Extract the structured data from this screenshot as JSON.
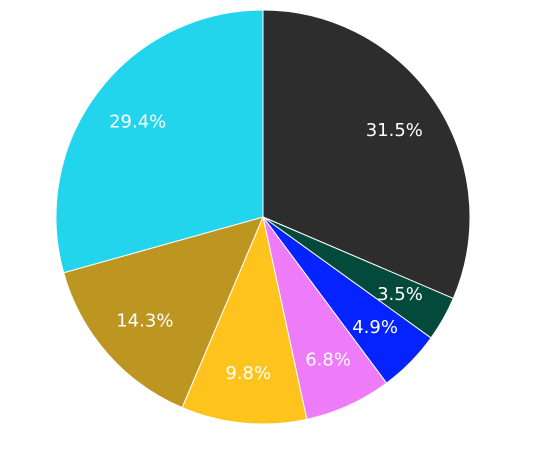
{
  "chart_data": {
    "type": "pie",
    "title": "",
    "start_angle_deg": 90,
    "direction": "clockwise",
    "legend": "none",
    "slices": [
      {
        "value": 31.5,
        "label": "31.5%",
        "color": "#2d2d2d"
      },
      {
        "value": 3.5,
        "label": "3.5%",
        "color": "#034a3c"
      },
      {
        "value": 4.9,
        "label": "4.9%",
        "color": "#0423ff"
      },
      {
        "value": 6.8,
        "label": "6.8%",
        "color": "#ee7bf7"
      },
      {
        "value": 9.8,
        "label": "9.8%",
        "color": "#fec31c"
      },
      {
        "value": 14.3,
        "label": "14.3%",
        "color": "#bd9521"
      },
      {
        "value": 29.4,
        "label": "29.4%",
        "color": "#22d5ed"
      }
    ]
  }
}
